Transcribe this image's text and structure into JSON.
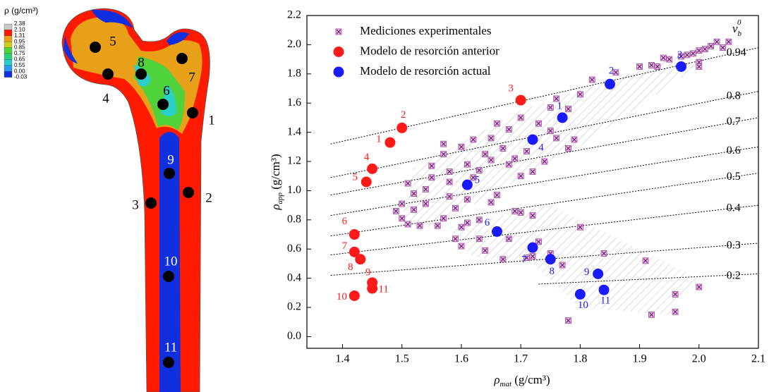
{
  "femur_figure": {
    "legend_title": "ρ (g/cm³)",
    "legend_labels": [
      "2.38",
      "2.10",
      "1.31",
      "0.95",
      "0.85",
      "0.75",
      "0.65",
      "0.55",
      "0.00",
      "-0.03"
    ],
    "point_labels": [
      "1",
      "2",
      "3",
      "4",
      "5",
      "6",
      "7",
      "8",
      "9",
      "10",
      "11"
    ]
  },
  "chart_data": {
    "type": "scatter",
    "x_label": {
      "symbol": "ρ",
      "subscript": "mat",
      "unit": " (g/cm³)"
    },
    "y_label": {
      "symbol": "ρ",
      "subscript": "app",
      "unit": " (g/cm³)"
    },
    "xlim": [
      1.34,
      2.1
    ],
    "ylim": [
      -0.08,
      2.2
    ],
    "xticks": [
      1.4,
      1.5,
      1.6,
      1.7,
      1.8,
      1.9,
      {
        "value": 2,
        "label": "2.0"
      },
      2.1
    ],
    "yticks": [
      {
        "value": 0,
        "label": "0.0"
      },
      0.2,
      0.4,
      0.6,
      0.8,
      {
        "value": 1,
        "label": "1.0"
      },
      1.2,
      1.4,
      1.6,
      1.8,
      {
        "value": 2,
        "label": "2.0"
      },
      2.2
    ],
    "series": [
      {
        "name": "Mediciones experimentales",
        "color": "#9b3d9b",
        "marker": "square",
        "x": [
          1.49,
          1.5,
          1.5,
          1.51,
          1.52,
          1.52,
          1.51,
          1.53,
          1.54,
          1.55,
          1.55,
          1.56,
          1.54,
          1.58,
          1.57,
          1.57,
          1.57,
          1.58,
          1.58,
          1.59,
          1.59,
          1.6,
          1.6,
          1.6,
          1.61,
          1.61,
          1.61,
          1.62,
          1.62,
          1.63,
          1.63,
          1.63,
          1.64,
          1.64,
          1.65,
          1.65,
          1.65,
          1.66,
          1.66,
          1.67,
          1.67,
          1.68,
          1.68,
          1.68,
          1.69,
          1.69,
          1.7,
          1.7,
          1.7,
          1.71,
          1.71,
          1.72,
          1.72,
          1.72,
          1.73,
          1.73,
          1.74,
          1.75,
          1.75,
          1.75,
          1.76,
          1.76,
          1.77,
          1.78,
          1.78,
          1.79,
          1.8,
          1.8,
          1.82,
          1.84,
          1.78,
          1.86,
          1.9,
          1.91,
          1.92,
          1.93,
          1.94,
          1.95,
          1.96,
          1.96,
          1.97,
          1.98,
          1.99,
          2.0,
          2.0,
          2.0,
          2.01,
          2.02,
          2.03,
          2.04,
          2.05,
          2.0,
          1.92
        ],
        "y": [
          0.86,
          0.81,
          0.91,
          0.77,
          0.87,
          0.98,
          1.05,
          0.76,
          1.01,
          1.17,
          1.09,
          0.76,
          0.91,
          0.96,
          0.81,
          1.32,
          1.25,
          1.13,
          1.06,
          0.67,
          0.88,
          0.62,
          1.3,
          0.75,
          0.78,
          0.94,
          1.18,
          1.09,
          1.35,
          0.8,
          1.14,
          0.67,
          0.59,
          1.25,
          1.36,
          0.92,
          1.21,
          0.97,
          1.46,
          0.53,
          1.29,
          0.67,
          1.18,
          1.42,
          0.86,
          1.22,
          0.85,
          1.5,
          1.1,
          0.54,
          1.27,
          0.83,
          1.13,
          0.55,
          0.65,
          1.46,
          1.2,
          1.41,
          1.57,
          0.57,
          1.63,
          1.36,
          0.49,
          1.29,
          1.56,
          1.35,
          0.75,
          1.66,
          1.76,
          0.57,
          0.11,
          1.81,
          1.85,
          0.52,
          1.86,
          1.85,
          1.91,
          1.9,
          0.29,
          0.17,
          1.92,
          1.93,
          1.94,
          1.88,
          1.85,
          1.96,
          1.97,
          1.99,
          2.02,
          1.98,
          2.02,
          0.34,
          0.15
        ]
      },
      {
        "name": "Modelo de resorción anterior",
        "color": "#ff1a1a",
        "marker": "circle",
        "labels": [
          "1",
          "2",
          "3",
          "4",
          "5",
          "6",
          "7",
          "8",
          "9",
          "10",
          "11"
        ],
        "x": [
          1.48,
          1.5,
          1.7,
          1.45,
          1.44,
          1.42,
          1.42,
          1.43,
          1.45,
          1.42,
          1.45
        ],
        "y": [
          1.33,
          1.43,
          1.62,
          1.15,
          1.06,
          0.7,
          0.58,
          0.53,
          0.37,
          0.28,
          0.33
        ]
      },
      {
        "name": "Modelo de resorción actual",
        "color": "#1a1aff",
        "marker": "circle",
        "labels": [
          "1",
          "2",
          "3",
          "4",
          "5",
          "6",
          "7",
          "8",
          "9",
          "10",
          "11"
        ],
        "x": [
          1.77,
          1.85,
          1.97,
          1.72,
          1.61,
          1.66,
          1.72,
          1.75,
          1.83,
          1.8,
          1.84
        ],
        "y": [
          1.5,
          1.73,
          1.85,
          1.35,
          1.04,
          0.72,
          0.61,
          0.53,
          0.43,
          0.29,
          0.32
        ]
      }
    ],
    "reference_title": {
      "symbol": "v",
      "subscript": "b",
      "superscript": "0"
    },
    "reference_lines": [
      {
        "level": 0.94,
        "x": [
          1.38,
          2.1
        ],
        "y": [
          1.32,
          1.98
        ]
      },
      {
        "level": 0.8,
        "x": [
          1.38,
          2.1
        ],
        "y": [
          1.09,
          1.68
        ]
      },
      {
        "level": 0.7,
        "x": [
          1.38,
          2.1
        ],
        "y": [
          0.97,
          1.5
        ]
      },
      {
        "level": 0.6,
        "x": [
          1.38,
          2.1
        ],
        "y": [
          0.83,
          1.3
        ]
      },
      {
        "level": 0.5,
        "x": [
          1.38,
          2.1
        ],
        "y": [
          0.69,
          1.12
        ]
      },
      {
        "level": 0.4,
        "x": [
          1.38,
          2.1
        ],
        "y": [
          0.56,
          0.9
        ]
      },
      {
        "level": 0.3,
        "x": [
          1.38,
          2.1
        ],
        "y": [
          0.42,
          0.64
        ]
      },
      {
        "level": 0.2,
        "x": [
          1.73,
          2.1
        ],
        "y": [
          0.36,
          0.43
        ]
      }
    ]
  }
}
